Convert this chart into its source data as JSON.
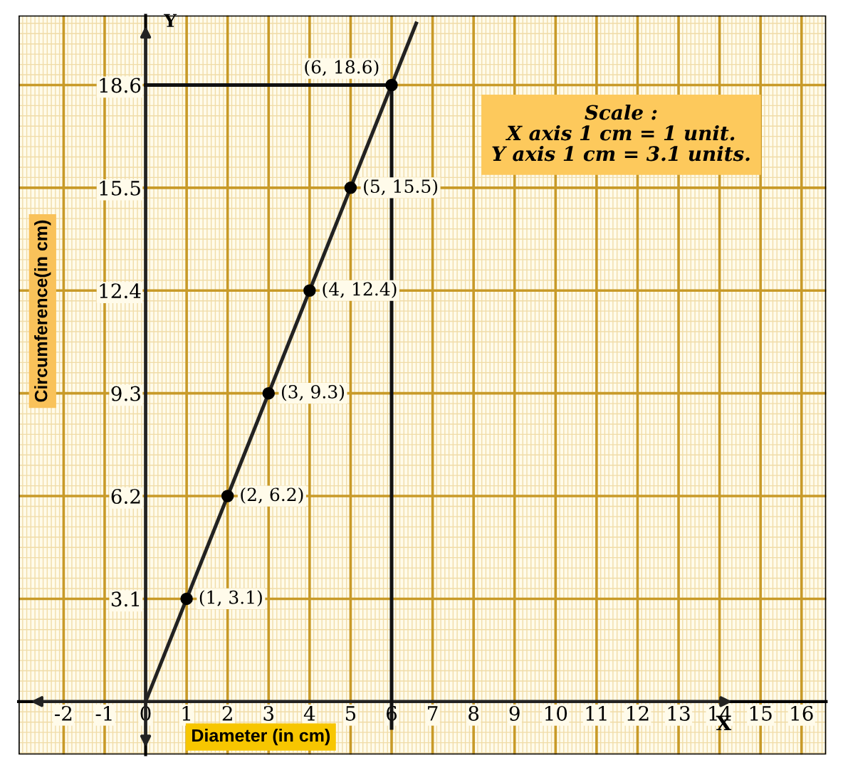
{
  "chart_data": {
    "type": "line",
    "xlabel": "Diameter (in cm)",
    "ylabel": "Circumference(in cm)",
    "x": [
      1,
      2,
      3,
      4,
      5,
      6
    ],
    "series": [
      {
        "type": "scatter",
        "marker": "circle",
        "color": "#000000",
        "values": [
          3.1,
          6.2,
          9.3,
          12.4,
          15.5,
          18.6
        ]
      },
      {
        "color": "#222222",
        "x": [
          0,
          6.6
        ],
        "values": [
          0,
          20.46
        ]
      },
      {
        "color": "#111111",
        "x": [
          6,
          6
        ],
        "values": [
          -0.8,
          18.6
        ]
      },
      {
        "color": "#111111",
        "x": [
          0,
          6
        ],
        "values": [
          18.6,
          18.6
        ]
      }
    ],
    "xlim": [
      -3.1,
      16.6
    ],
    "ylim": [
      -1.6,
      20.7
    ],
    "xticks": [
      -2,
      -1,
      0,
      1,
      2,
      3,
      4,
      5,
      6,
      7,
      8,
      9,
      10,
      11,
      12,
      13,
      14,
      15,
      16
    ],
    "yticks": [
      3.1,
      6.2,
      9.3,
      12.4,
      15.5,
      18.6
    ],
    "grid": true,
    "annotations": [
      {
        "text": "(1, 3.1)",
        "x": 1,
        "y": 3.1
      },
      {
        "text": "(2, 6.2)",
        "x": 2,
        "y": 6.2
      },
      {
        "text": "(3, 9.3)",
        "x": 3,
        "y": 9.3
      },
      {
        "text": "(4, 12.4)",
        "x": 4,
        "y": 12.4
      },
      {
        "text": "(5, 15.5)",
        "x": 5,
        "y": 15.5
      },
      {
        "text": "(6, 18.6)",
        "x": 6,
        "y": 18.6
      },
      "X",
      "Y",
      "Scale :",
      "X axis 1 cm = 1 unit.",
      "Y axis 1 cm = 3.1 units."
    ]
  }
}
